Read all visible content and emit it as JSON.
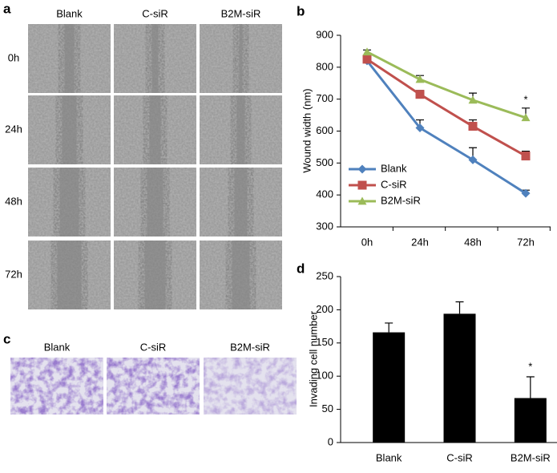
{
  "panel_a": {
    "letter": "a",
    "columns": [
      "Blank",
      "C-siR",
      "B2M-siR"
    ],
    "rows": [
      "0h",
      "24h",
      "48h",
      "72h"
    ]
  },
  "panel_c": {
    "letter": "c",
    "columns": [
      "Blank",
      "C-siR",
      "B2M-siR"
    ]
  },
  "chart_data": [
    {
      "type": "line",
      "letter": "b",
      "ylabel": "Wound width (nm)",
      "categories": [
        "0h",
        "24h",
        "48h",
        "72h"
      ],
      "ylim": [
        300,
        900
      ],
      "yticks": [
        300,
        400,
        500,
        600,
        700,
        800,
        900
      ],
      "legend": "lower left",
      "annotation": "*",
      "series": [
        {
          "name": "Blank",
          "color": "#4f81bd",
          "marker": "diamond",
          "values": [
            820,
            610,
            510,
            405
          ],
          "errors": [
            6,
            25,
            38,
            10
          ]
        },
        {
          "name": "C-siR",
          "color": "#c0504d",
          "marker": "square",
          "values": [
            825,
            715,
            615,
            522
          ],
          "errors": [
            6,
            12,
            20,
            15
          ]
        },
        {
          "name": "B2M-siR",
          "color": "#9bbb59",
          "marker": "triangle",
          "values": [
            848,
            762,
            697,
            642
          ],
          "errors": [
            6,
            12,
            22,
            30
          ]
        }
      ]
    },
    {
      "type": "bar",
      "letter": "d",
      "ylabel": "Invading cell number",
      "categories": [
        "Blank",
        "C-siR",
        "B2M-siR"
      ],
      "values": [
        166,
        194,
        67
      ],
      "errors": [
        14,
        18,
        32
      ],
      "color": "#000000",
      "ylim": [
        0,
        250
      ],
      "yticks": [
        0,
        50,
        100,
        150,
        200,
        250
      ],
      "annotation": "*"
    }
  ]
}
